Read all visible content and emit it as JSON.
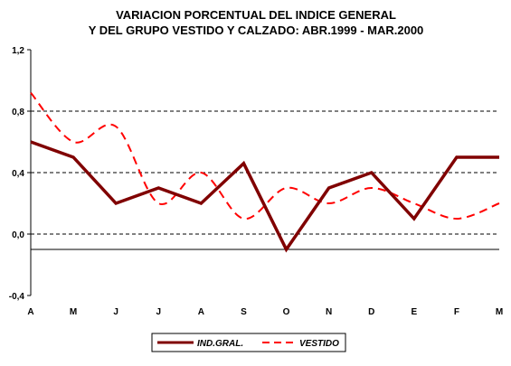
{
  "chart_data": {
    "type": "line",
    "title": "VARIACION PORCENTUAL DEL INDICE GENERAL",
    "subtitle": "Y DEL GRUPO VESTIDO Y CALZADO: ABR.1999 - MAR.2000",
    "categories": [
      "A",
      "M",
      "J",
      "J",
      "A",
      "S",
      "O",
      "N",
      "D",
      "E",
      "F",
      "M"
    ],
    "y_ticks": [
      "1,2",
      "0,8",
      "0,4",
      "0,0",
      "-0,4"
    ],
    "ylim": [
      -0.4,
      1.2
    ],
    "grid": "dashed horizontal lines at 0.8, 0.4, 0.0",
    "reference_line": -0.1,
    "legend_position": "bottom-center",
    "series": [
      {
        "name": "IND.GRAL.",
        "color": "#800000",
        "style": "solid",
        "values": [
          0.6,
          0.5,
          0.2,
          0.3,
          0.2,
          0.46,
          -0.1,
          0.3,
          0.4,
          0.1,
          0.5,
          0.5
        ]
      },
      {
        "name": "VESTIDO",
        "color": "#ff0000",
        "style": "dashed",
        "values": [
          0.92,
          0.6,
          0.7,
          0.2,
          0.4,
          0.1,
          0.3,
          0.2,
          0.3,
          0.2,
          0.1,
          0.2
        ]
      }
    ]
  }
}
